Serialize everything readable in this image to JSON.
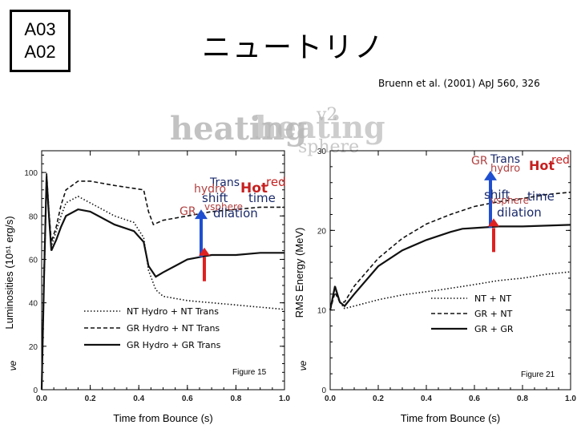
{
  "header": {
    "tags": [
      "A03",
      "A02"
    ],
    "title": "ニュートリノ",
    "citation": "Bruenn et al. (2001) ApJ 560, 326"
  },
  "overlay_words": {
    "heating": "heating",
    "v2": "v2",
    "sphere": "sphere"
  },
  "annotation_words": {
    "gr": "GR",
    "trans": "Trans",
    "hydro": "hydro",
    "hot": "Hot",
    "red": "red",
    "shift": "shift",
    "time": "time",
    "vsphere": "vsphere",
    "dilation": "dilation"
  },
  "colors": {
    "hot_text": "#c62020",
    "red_text": "#c62020",
    "faint_text": "#b04040",
    "label_text": "#1a2a6a",
    "arrow_blue": "#1f4fd0",
    "arrow_red": "#e02020",
    "overlay_gray": "#b8b8b8",
    "curve": "#111111"
  },
  "chart_data": [
    {
      "type": "line",
      "xlabel": "Time from Bounce (s)",
      "ylabel": "Luminosities (10⁵¹ erg/s)",
      "ylabel_symbol": "νe",
      "figure_label": "Figure 15",
      "xlim": [
        0.0,
        1.0
      ],
      "ylim": [
        0,
        110
      ],
      "xticks": [
        "0.0",
        "0.2",
        "0.4",
        "0.6",
        "0.8",
        "1.0"
      ],
      "xtick_values": [
        0.0,
        0.2,
        0.4,
        0.6,
        0.8,
        1.0
      ],
      "yticks": [
        "0",
        "20",
        "40",
        "60",
        "80",
        "100"
      ],
      "ytick_values": [
        0,
        20,
        40,
        60,
        80,
        100
      ],
      "legend": "bottom-left",
      "series": [
        {
          "name": "NT Hydro + NT Trans",
          "style": "dotted",
          "points": [
            [
              0.0,
              0
            ],
            [
              0.01,
              50
            ],
            [
              0.02,
              96
            ],
            [
              0.03,
              80
            ],
            [
              0.04,
              66
            ],
            [
              0.06,
              73
            ],
            [
              0.08,
              80
            ],
            [
              0.1,
              86
            ],
            [
              0.15,
              89
            ],
            [
              0.2,
              86
            ],
            [
              0.3,
              80
            ],
            [
              0.38,
              77
            ],
            [
              0.42,
              70
            ],
            [
              0.44,
              55
            ],
            [
              0.47,
              46
            ],
            [
              0.5,
              43
            ],
            [
              0.6,
              41
            ],
            [
              0.7,
              40
            ],
            [
              0.8,
              39
            ],
            [
              0.9,
              38
            ],
            [
              1.0,
              37
            ]
          ]
        },
        {
          "name": "GR Hydro + NT Trans",
          "style": "dashed",
          "points": [
            [
              0.0,
              0
            ],
            [
              0.01,
              55
            ],
            [
              0.02,
              100
            ],
            [
              0.03,
              82
            ],
            [
              0.04,
              68
            ],
            [
              0.06,
              75
            ],
            [
              0.08,
              85
            ],
            [
              0.1,
              92
            ],
            [
              0.15,
              96
            ],
            [
              0.2,
              96
            ],
            [
              0.3,
              94
            ],
            [
              0.42,
              92
            ],
            [
              0.44,
              82
            ],
            [
              0.46,
              76
            ],
            [
              0.5,
              78
            ],
            [
              0.6,
              80
            ],
            [
              0.7,
              82
            ],
            [
              0.8,
              83
            ],
            [
              0.9,
              84
            ],
            [
              1.0,
              84
            ]
          ]
        },
        {
          "name": "GR Hydro + GR Trans",
          "style": "solid",
          "points": [
            [
              0.0,
              0
            ],
            [
              0.01,
              52
            ],
            [
              0.02,
              98
            ],
            [
              0.03,
              80
            ],
            [
              0.04,
              64
            ],
            [
              0.06,
              69
            ],
            [
              0.08,
              75
            ],
            [
              0.1,
              80
            ],
            [
              0.15,
              83
            ],
            [
              0.2,
              82
            ],
            [
              0.3,
              76
            ],
            [
              0.38,
              73
            ],
            [
              0.42,
              68
            ],
            [
              0.44,
              57
            ],
            [
              0.47,
              52
            ],
            [
              0.5,
              54
            ],
            [
              0.55,
              57
            ],
            [
              0.6,
              60
            ],
            [
              0.65,
              61
            ],
            [
              0.7,
              62
            ],
            [
              0.8,
              62
            ],
            [
              0.9,
              63
            ],
            [
              1.0,
              63
            ]
          ]
        }
      ],
      "arrow_x": 0.66,
      "arrow_y_from": 61,
      "arrow_y_to": 83
    },
    {
      "type": "line",
      "xlabel": "Time from Bounce (s)",
      "ylabel": "RMS Energy (MeV)",
      "ylabel_symbol": "νe",
      "figure_label": "Figure 21",
      "xlim": [
        0.0,
        1.0
      ],
      "ylim": [
        0,
        30
      ],
      "xticks": [
        "0.0",
        "0.2",
        "0.4",
        "0.6",
        "0.8",
        "1.0"
      ],
      "xtick_values": [
        0.0,
        0.2,
        0.4,
        0.6,
        0.8,
        1.0
      ],
      "yticks": [
        "0",
        "10",
        "20",
        "30"
      ],
      "ytick_values": [
        0,
        10,
        20,
        30
      ],
      "legend": "right-middle",
      "series": [
        {
          "name": "NT + NT",
          "style": "dotted",
          "points": [
            [
              0.0,
              10
            ],
            [
              0.02,
              12.8
            ],
            [
              0.04,
              11
            ],
            [
              0.06,
              10.2
            ],
            [
              0.1,
              10.5
            ],
            [
              0.2,
              11.3
            ],
            [
              0.3,
              11.9
            ],
            [
              0.45,
              12.5
            ],
            [
              0.6,
              13.2
            ],
            [
              0.7,
              13.7
            ],
            [
              0.8,
              14
            ],
            [
              0.9,
              14.5
            ],
            [
              1.0,
              14.8
            ]
          ]
        },
        {
          "name": "GR + NT",
          "style": "dashed",
          "points": [
            [
              0.0,
              10
            ],
            [
              0.02,
              12.2
            ],
            [
              0.04,
              11
            ],
            [
              0.06,
              11
            ],
            [
              0.1,
              13
            ],
            [
              0.2,
              16.5
            ],
            [
              0.3,
              19
            ],
            [
              0.4,
              20.8
            ],
            [
              0.5,
              22
            ],
            [
              0.6,
              23
            ],
            [
              0.7,
              23.6
            ],
            [
              0.8,
              24
            ],
            [
              0.9,
              24.5
            ],
            [
              1.0,
              24.8
            ]
          ]
        },
        {
          "name": "GR + GR",
          "style": "solid",
          "points": [
            [
              0.0,
              10
            ],
            [
              0.02,
              13
            ],
            [
              0.04,
              11
            ],
            [
              0.06,
              10.5
            ],
            [
              0.1,
              12
            ],
            [
              0.2,
              15.5
            ],
            [
              0.3,
              17.5
            ],
            [
              0.4,
              18.8
            ],
            [
              0.5,
              19.8
            ],
            [
              0.55,
              20.2
            ],
            [
              0.6,
              20.3
            ],
            [
              0.65,
              20.4
            ],
            [
              0.7,
              20.5
            ],
            [
              0.8,
              20.5
            ],
            [
              0.9,
              20.6
            ],
            [
              1.0,
              20.7
            ]
          ]
        }
      ],
      "arrow_x": 0.67,
      "arrow_y_from": 20.3,
      "arrow_y_to": 27.5
    }
  ]
}
